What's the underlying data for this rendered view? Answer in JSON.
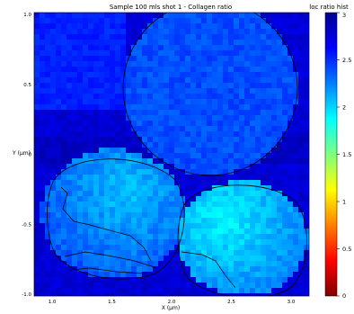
{
  "chart_data": {
    "type": "heatmap",
    "title": "Sample 100 mls shot 1 - Collagen ratio",
    "colorbar_label": "loc ratio hist",
    "colorbar_ticks": [
      "3",
      "2.5",
      "2",
      "1.5",
      "1",
      "0.5",
      "0"
    ],
    "clim": [
      0,
      3
    ],
    "colormap": "jet",
    "grid": false,
    "legend": "none",
    "xlabel": "X (μm)",
    "ylabel": "Y (μm)",
    "xticks": [
      "1.0",
      "1.5",
      "2.0",
      "2.5",
      "3.0"
    ],
    "yticks": [
      "1.0",
      "0.5",
      "0",
      "-0.5",
      "-1.0"
    ],
    "regions": [
      {
        "name": "upper-right circle",
        "mean_value": 0.6
      },
      {
        "name": "lower-left region",
        "mean_value": 0.7
      },
      {
        "name": "lower-right region",
        "mean_value": 0.85
      }
    ]
  }
}
